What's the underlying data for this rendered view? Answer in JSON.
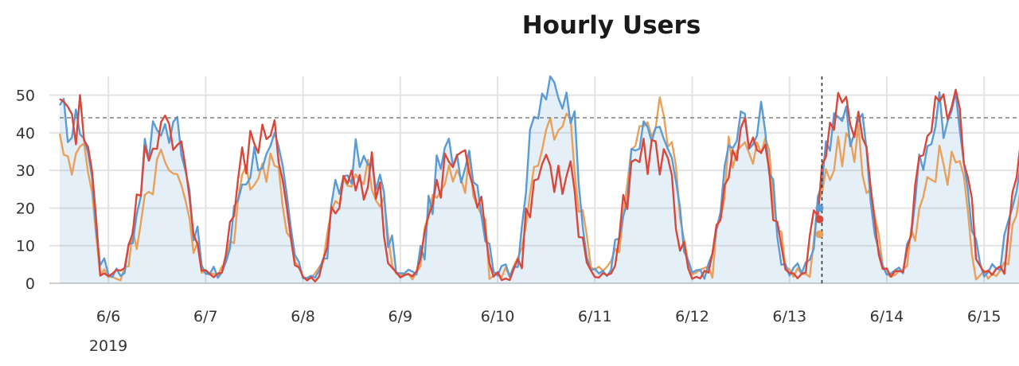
{
  "chart_data": {
    "type": "line",
    "title": "Hourly Users",
    "xlabel": "",
    "ylabel": "",
    "ylim": [
      0,
      55
    ],
    "xlim": [
      "2019-06-05 12:00",
      "2019-06-15 09:00"
    ],
    "y_ticks": [
      "0",
      "10",
      "20",
      "30",
      "40",
      "50"
    ],
    "x_ticks": [
      "6/6",
      "6/7",
      "6/8",
      "6/9",
      "6/10",
      "6/11",
      "6/12",
      "6/13",
      "6/14",
      "6/15"
    ],
    "x_ticks_year": "2019",
    "grid": true,
    "legend": "none",
    "reference_line": {
      "y": 44,
      "style": "dashed"
    },
    "cursor": {
      "x": "2019-06-13 08:00"
    },
    "series": [
      {
        "color": "#5b9bd5",
        "area": true,
        "hourly_profile": [
          2,
          2,
          3,
          2,
          3,
          6,
          10,
          16,
          22,
          26,
          28,
          30,
          32,
          33,
          32,
          30,
          31,
          33,
          30,
          26,
          20,
          13,
          7,
          4
        ],
        "day_peaks": [
          44,
          43,
          35,
          33,
          36,
          53,
          40,
          43,
          45,
          45
        ],
        "cursor_value": 20
      },
      {
        "color": "#e8a05a",
        "area": false,
        "hourly_profile": [
          2,
          2,
          2,
          2,
          3,
          5,
          9,
          14,
          20,
          24,
          26,
          27,
          28,
          29,
          28,
          27,
          28,
          29,
          27,
          23,
          17,
          11,
          6,
          3
        ],
        "day_peaks": [
          36,
          31,
          32,
          29,
          30,
          41,
          45,
          40,
          37,
          33
        ],
        "cursor_value": 13
      },
      {
        "color": "#d9473b",
        "area": false,
        "hourly_profile": [
          2,
          2,
          2,
          2,
          3,
          6,
          11,
          17,
          23,
          27,
          29,
          31,
          33,
          34,
          33,
          31,
          32,
          34,
          31,
          26,
          19,
          12,
          6,
          3
        ],
        "day_peaks": [
          45,
          42,
          38,
          30,
          32,
          30,
          35,
          39,
          46,
          47
        ],
        "cursor_value": 17
      }
    ]
  }
}
